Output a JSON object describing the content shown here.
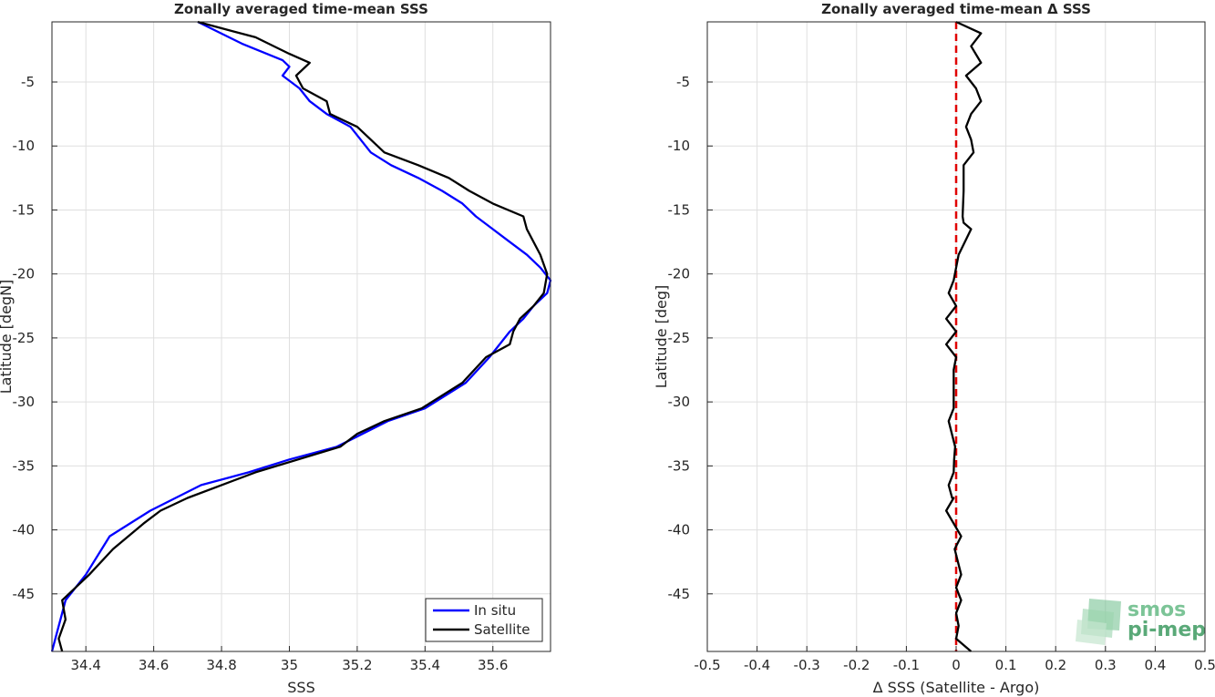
{
  "chart_data": [
    {
      "type": "line",
      "title": "Zonally averaged time-mean SSS",
      "xlabel": "SSS",
      "ylabel": "Latitude [degN]",
      "xlim": [
        34.3,
        35.77
      ],
      "ylim": [
        -49.5,
        -0.3
      ],
      "xticks": [
        34.4,
        34.6,
        34.8,
        35,
        35.2,
        35.4,
        35.6
      ],
      "xtick_labels": [
        "34.4",
        "34.6",
        "34.8",
        "35",
        "35.2",
        "35.4",
        "35.6"
      ],
      "yticks": [
        -5,
        -10,
        -15,
        -20,
        -25,
        -30,
        -35,
        -40,
        -45
      ],
      "ytick_labels": [
        "-5",
        "-10",
        "-15",
        "-20",
        "-25",
        "-30",
        "-35",
        "-40",
        "-45"
      ],
      "grid": true,
      "legend_position": "bottom-right",
      "series": [
        {
          "name": "In situ",
          "color": "#0000ff",
          "x": [
            34.73,
            34.86,
            34.98,
            35.0,
            34.98,
            35.03,
            35.06,
            35.11,
            35.18,
            35.24,
            35.3,
            35.38,
            35.45,
            35.51,
            35.55,
            35.6,
            35.65,
            35.7,
            35.74,
            35.77,
            35.76,
            35.72,
            35.69,
            35.65,
            35.59,
            35.52,
            35.4,
            35.29,
            35.14,
            35.0,
            34.88,
            34.74,
            34.59,
            34.47,
            34.4,
            34.34,
            34.33,
            34.31,
            34.3
          ],
          "y": [
            -0.3,
            -2,
            -3.3,
            -3.8,
            -4.5,
            -5.5,
            -6.5,
            -7.5,
            -8.5,
            -10.5,
            -11.5,
            -12.5,
            -13.5,
            -14.5,
            -15.5,
            -16.5,
            -17.5,
            -18.5,
            -19.5,
            -20.5,
            -21.5,
            -22.5,
            -23.5,
            -24.5,
            -26.5,
            -28.5,
            -30.5,
            -31.5,
            -33.5,
            -34.5,
            -35.5,
            -36.5,
            -38.5,
            -40.5,
            -43.5,
            -45.5,
            -46.5,
            -48.5,
            -49.5
          ]
        },
        {
          "name": "Satellite",
          "color": "#000000",
          "x": [
            34.73,
            34.9,
            35.0,
            35.06,
            35.02,
            35.04,
            35.11,
            35.12,
            35.2,
            35.28,
            35.38,
            35.47,
            35.53,
            35.6,
            35.69,
            35.7,
            35.74,
            35.76,
            35.75,
            35.72,
            35.68,
            35.66,
            35.65,
            35.58,
            35.51,
            35.39,
            35.28,
            35.2,
            35.15,
            34.9,
            34.8,
            34.7,
            34.62,
            34.57,
            34.48,
            34.41,
            34.37,
            34.33,
            34.34,
            34.32,
            34.33
          ],
          "y": [
            -0.3,
            -1.5,
            -2.8,
            -3.5,
            -4.5,
            -5.5,
            -6.5,
            -7.5,
            -8.5,
            -10.5,
            -11.5,
            -12.5,
            -13.5,
            -14.5,
            -15.5,
            -16.5,
            -18.5,
            -20.0,
            -21.5,
            -22.5,
            -23.5,
            -24.5,
            -25.5,
            -26.5,
            -28.5,
            -30.5,
            -31.5,
            -32.5,
            -33.5,
            -35.5,
            -36.5,
            -37.5,
            -38.5,
            -39.5,
            -41.5,
            -43.5,
            -44.5,
            -45.5,
            -47.0,
            -48.5,
            -49.5
          ]
        }
      ]
    },
    {
      "type": "line",
      "title": "Zonally averaged time-mean Δ SSS",
      "xlabel": "Δ SSS (Satellite - Argo)",
      "ylabel": "Latitude [deg]",
      "xlim": [
        -0.5,
        0.5
      ],
      "ylim": [
        -49.5,
        -0.3
      ],
      "xticks": [
        -0.5,
        -0.4,
        -0.3,
        -0.2,
        -0.1,
        0,
        0.1,
        0.2,
        0.3,
        0.4,
        0.5
      ],
      "xtick_labels": [
        "-0.5",
        "-0.4",
        "-0.3",
        "-0.2",
        "-0.1",
        "0",
        "0.1",
        "0.2",
        "0.3",
        "0.4",
        "0.5"
      ],
      "yticks": [
        -5,
        -10,
        -15,
        -20,
        -25,
        -30,
        -35,
        -40,
        -45
      ],
      "ytick_labels": [
        "-5",
        "-10",
        "-15",
        "-20",
        "-25",
        "-30",
        "-35",
        "-40",
        "-45"
      ],
      "grid": true,
      "reference_line": {
        "x": 0,
        "color": "#e00000",
        "style": "dashed"
      },
      "series": [
        {
          "color": "#000000",
          "x": [
            0.0,
            0.05,
            0.03,
            0.05,
            0.02,
            0.04,
            0.05,
            0.03,
            0.02,
            0.03,
            0.035,
            0.015,
            0.015,
            0.013,
            0.015,
            0.03,
            0.005,
            0.0,
            -0.005,
            -0.015,
            0.0,
            -0.02,
            0.0,
            -0.02,
            0.0,
            -0.005,
            -0.005,
            -0.005,
            -0.015,
            -0.002,
            -0.004,
            -0.005,
            -0.015,
            -0.008,
            -0.005,
            -0.02,
            0.01,
            -0.003,
            0.01,
            0.0,
            0.01,
            0.0,
            0.005,
            0.0,
            0.03
          ],
          "y": [
            -0.3,
            -1.2,
            -2.2,
            -3.5,
            -4.5,
            -5.5,
            -6.5,
            -7.5,
            -8.5,
            -9.5,
            -10.5,
            -11.5,
            -13.5,
            -15.5,
            -16.0,
            -16.5,
            -18.5,
            -19.5,
            -20.5,
            -21.5,
            -22.5,
            -23.5,
            -24.5,
            -25.5,
            -26.5,
            -27.5,
            -29.5,
            -30.5,
            -31.5,
            -33.5,
            -34.5,
            -35.5,
            -36.5,
            -37.5,
            -37.5,
            -38.5,
            -40.5,
            -41.5,
            -43.5,
            -44.5,
            -45.5,
            -46.5,
            -47.5,
            -48.5,
            -49.5
          ]
        }
      ],
      "watermark": {
        "line1": "smos",
        "line2": "pi-mep"
      }
    }
  ],
  "legend": {
    "items": [
      "In situ",
      "Satellite"
    ]
  }
}
